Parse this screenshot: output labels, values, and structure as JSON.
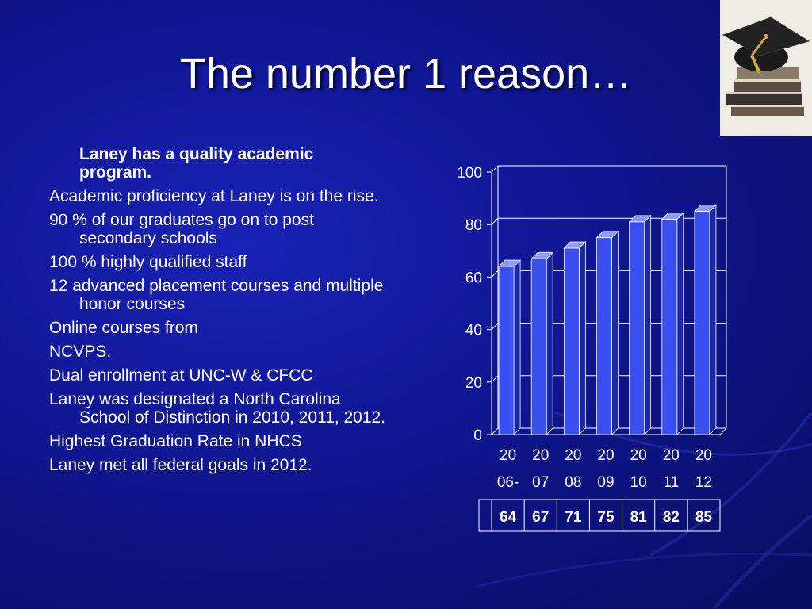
{
  "slide": {
    "title": "The number 1 reason…"
  },
  "content": {
    "heading": "Laney has a quality academic program.",
    "items": [
      "Academic proficiency at Laney is on the rise.",
      "90 % of our graduates go on to post secondary schools",
      "100 % highly qualified staff",
      "12 advanced placement courses and multiple honor courses",
      "Online courses from",
      "NCVPS.",
      "Dual enrollment at UNC-W & CFCC",
      "Laney was designated a North Carolina School of Distinction in 2010, 2011, 2012.",
      "Highest Graduation Rate in NHCS",
      "Laney met all federal goals in 2012."
    ]
  },
  "colors": {
    "bar_fill": "#3a4ff0",
    "bar_top": "#8d9bff",
    "bar_side": "#1c27a8",
    "grid": "#ffffff"
  },
  "chart_data": {
    "type": "bar",
    "categories": [
      [
        "20",
        "06-"
      ],
      [
        "20",
        "07"
      ],
      [
        "20",
        "08"
      ],
      [
        "20",
        "09"
      ],
      [
        "20",
        "10"
      ],
      [
        "20",
        "11"
      ],
      [
        "20",
        "12"
      ]
    ],
    "values": [
      64,
      67,
      71,
      75,
      81,
      82,
      85
    ],
    "yticks": [
      "100",
      "80",
      "60",
      "40",
      "20",
      "0"
    ],
    "ylim": [
      0,
      100
    ],
    "grid": true,
    "data_table": true,
    "title": "",
    "xlabel": "",
    "ylabel": ""
  }
}
